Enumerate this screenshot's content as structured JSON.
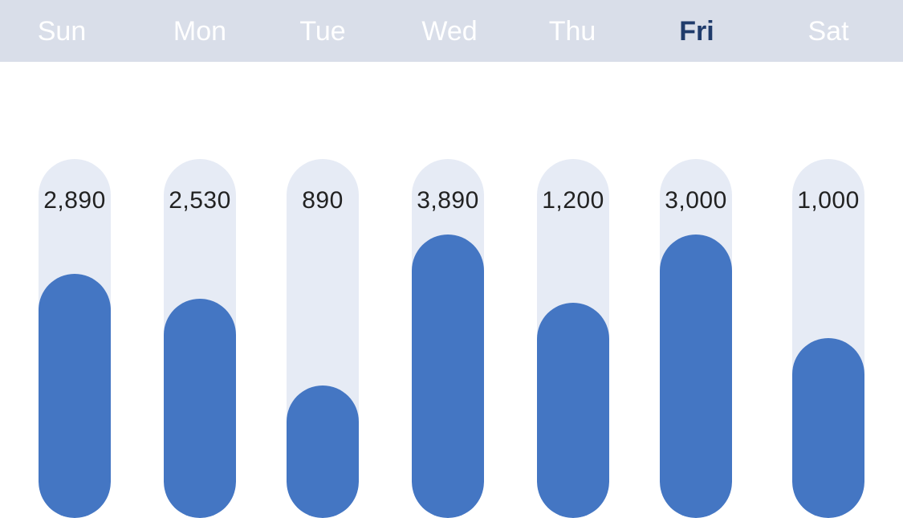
{
  "days": [
    {
      "label": "Sun",
      "active": false
    },
    {
      "label": "Mon",
      "active": false
    },
    {
      "label": "Tue",
      "active": false
    },
    {
      "label": "Wed",
      "active": false
    },
    {
      "label": "Thu",
      "active": false
    },
    {
      "label": "Fri",
      "active": true
    },
    {
      "label": "Sat",
      "active": false
    }
  ],
  "colors": {
    "header_bg": "#d9dee9",
    "header_text": "#ffffff",
    "active_day_text": "#1f3b6b",
    "track": "#e6ebf5",
    "fill": "#4476c3",
    "value_text": "#222222"
  },
  "chart_data": {
    "type": "bar",
    "categories": [
      "Sun",
      "Mon",
      "Tue",
      "Wed",
      "Thu",
      "Fri",
      "Sat"
    ],
    "values": [
      2890,
      2530,
      890,
      3890,
      1200,
      3000,
      1000
    ],
    "value_labels": [
      "2,890",
      "2,530",
      "890",
      "3,890",
      "1,200",
      "3,000",
      "1,000"
    ],
    "fill_fractions": [
      0.68,
      0.61,
      0.37,
      0.79,
      0.6,
      0.79,
      0.5
    ],
    "title": "",
    "xlabel": "",
    "ylabel": ""
  }
}
